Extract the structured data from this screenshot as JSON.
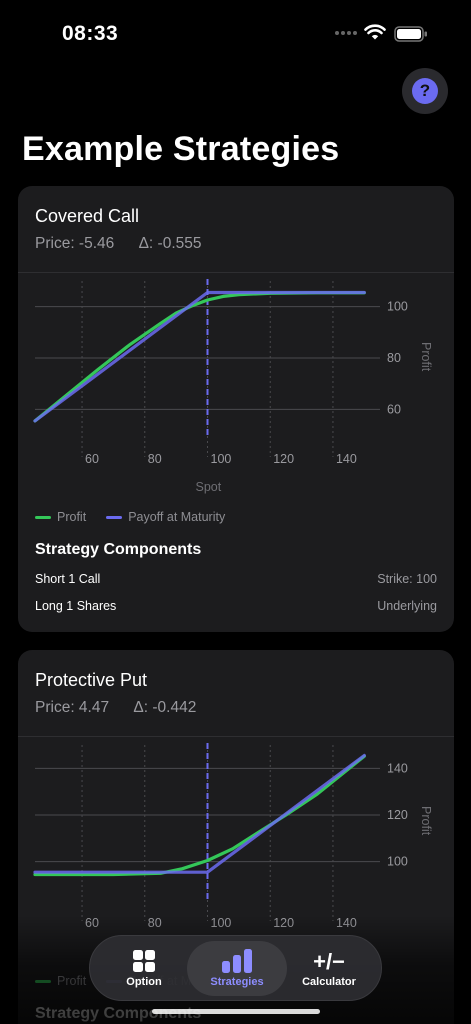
{
  "status_bar": {
    "time": "08:33"
  },
  "header": {
    "title": "Example Strategies",
    "help_label": "?"
  },
  "colors": {
    "accent": "#6b6bf0",
    "profit": "#34c759",
    "payoff": "#6b6bf0",
    "card": "#1c1c1e"
  },
  "legend": {
    "profit": "Profit",
    "payoff": "Payoff at Maturity"
  },
  "components_title": "Strategy Components",
  "strategies": [
    {
      "name": "Covered Call",
      "price": "Price: -5.46",
      "delta": "Δ: -0.555",
      "components": [
        {
          "left": "Short 1 Call",
          "right": "Strike: 100"
        },
        {
          "left": "Long 1 Shares",
          "right": "Underlying"
        }
      ],
      "chart_data": {
        "type": "line",
        "xlabel": "Spot",
        "ylabel": "Profit",
        "x_ticks": [
          60,
          80,
          100,
          120,
          140
        ],
        "y_ticks": [
          60,
          80,
          100
        ],
        "xlim": [
          45,
          155
        ],
        "ylim": [
          50,
          110
        ],
        "strike_line_x": 100,
        "series": [
          {
            "name": "Profit",
            "points": [
              [
                45,
                55.5
              ],
              [
                55,
                65.5
              ],
              [
                65,
                75.4
              ],
              [
                75,
                85
              ],
              [
                85,
                93.5
              ],
              [
                90,
                97.5
              ],
              [
                95,
                100.3
              ],
              [
                100,
                102.6
              ],
              [
                105,
                104
              ],
              [
                110,
                104.7
              ],
              [
                120,
                105.2
              ],
              [
                135,
                105.4
              ],
              [
                150,
                105.4
              ]
            ]
          },
          {
            "name": "Payoff at Maturity",
            "points": [
              [
                45,
                55.5
              ],
              [
                100,
                105.5
              ],
              [
                150,
                105.5
              ]
            ]
          }
        ]
      }
    },
    {
      "name": "Protective Put",
      "price": "Price: 4.47",
      "delta": "Δ: -0.442",
      "components": [],
      "chart_data": {
        "type": "line",
        "xlabel": "Spot",
        "ylabel": "Profit",
        "x_ticks": [
          60,
          80,
          100,
          120,
          140
        ],
        "y_ticks": [
          100,
          120,
          140
        ],
        "xlim": [
          45,
          155
        ],
        "ylim": [
          84,
          150
        ],
        "strike_line_x": 100,
        "series": [
          {
            "name": "Profit",
            "points": [
              [
                45,
                94.5
              ],
              [
                70,
                94.5
              ],
              [
                85,
                95
              ],
              [
                92,
                97
              ],
              [
                100,
                100.5
              ],
              [
                108,
                105.5
              ],
              [
                115,
                111.5
              ],
              [
                125,
                120
              ],
              [
                135,
                129
              ],
              [
                150,
                145.2
              ]
            ]
          },
          {
            "name": "Payoff at Maturity",
            "points": [
              [
                45,
                95.5
              ],
              [
                100,
                95.5
              ],
              [
                150,
                145.5
              ]
            ]
          }
        ]
      }
    }
  ],
  "tabs": [
    {
      "label": "Option",
      "icon": "grid-icon"
    },
    {
      "label": "Strategies",
      "icon": "bar-chart-icon"
    },
    {
      "label": "Calculator",
      "icon": "plus-minus-icon",
      "glyph": "+/−"
    }
  ]
}
